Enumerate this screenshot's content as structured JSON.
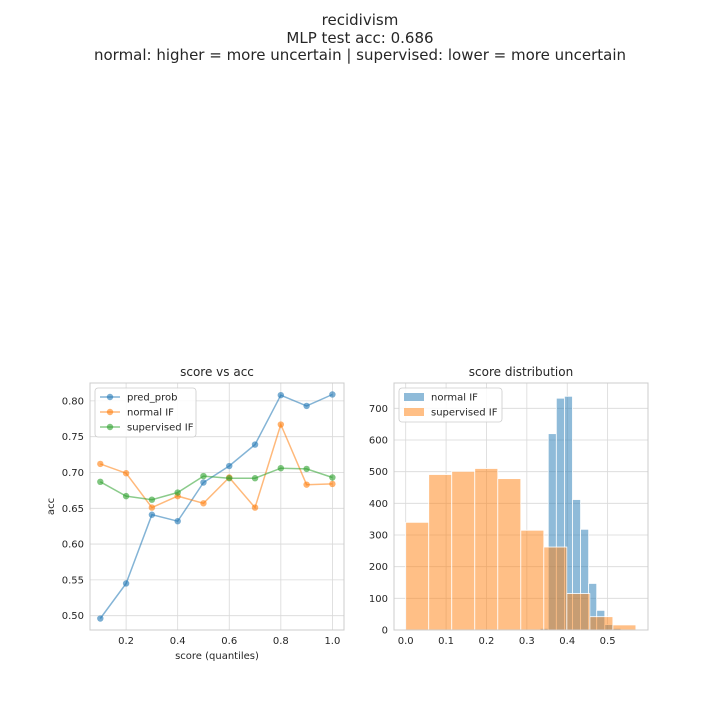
{
  "figure": {
    "title_lines": [
      "recidivism",
      "MLP test acc: 0.686",
      "normal: higher = more uncertain | supervised: lower = more uncertain"
    ]
  },
  "colors": {
    "blue": "#1f77b4",
    "orange": "#ff7f0e",
    "green": "#2ca02c",
    "grid": "#d9d9d9",
    "text": "#262626"
  },
  "chart_data": [
    {
      "type": "line",
      "title": "score vs acc",
      "xlabel": "score (quantiles)",
      "ylabel": "acc",
      "x": [
        0.1,
        0.2,
        0.3,
        0.4,
        0.5,
        0.6,
        0.7,
        0.8,
        0.9,
        1.0
      ],
      "xlim": [
        0.06,
        1.045
      ],
      "ylim": [
        0.48,
        0.825
      ],
      "xticks": [
        0.2,
        0.4,
        0.6,
        0.8,
        1.0
      ],
      "xtick_labels": [
        "0.2",
        "0.4",
        "0.6",
        "0.8",
        "1.0"
      ],
      "yticks": [
        0.5,
        0.55,
        0.6,
        0.65,
        0.7,
        0.75,
        0.8
      ],
      "ytick_labels": [
        "0.50",
        "0.55",
        "0.60",
        "0.65",
        "0.70",
        "0.75",
        "0.80"
      ],
      "grid": true,
      "legend": "upper left",
      "series": [
        {
          "name": "pred_prob",
          "color": "#1f77b4",
          "values": [
            0.496,
            0.545,
            0.641,
            0.632,
            0.686,
            0.709,
            0.739,
            0.808,
            0.793,
            0.809
          ]
        },
        {
          "name": "normal IF",
          "color": "#ff7f0e",
          "values": [
            0.712,
            0.699,
            0.651,
            0.667,
            0.657,
            0.693,
            0.651,
            0.767,
            0.683,
            0.684
          ]
        },
        {
          "name": "supervised IF",
          "color": "#2ca02c",
          "values": [
            0.687,
            0.667,
            0.662,
            0.672,
            0.695,
            0.692,
            0.692,
            0.706,
            0.705,
            0.693
          ]
        }
      ]
    },
    {
      "type": "bar",
      "subtype": "histogram",
      "title": "score distribution",
      "xlim": [
        -0.029,
        0.6
      ],
      "ylim": [
        0,
        780
      ],
      "xticks": [
        0.0,
        0.1,
        0.2,
        0.3,
        0.4,
        0.5
      ],
      "xtick_labels": [
        "0.0",
        "0.1",
        "0.2",
        "0.3",
        "0.4",
        "0.5"
      ],
      "yticks": [
        0,
        100,
        200,
        300,
        400,
        500,
        600,
        700
      ],
      "ytick_labels": [
        "0",
        "100",
        "200",
        "300",
        "400",
        "500",
        "600",
        "700"
      ],
      "grid": true,
      "legend": "upper left",
      "series": [
        {
          "name": "normal IF",
          "color": "#1f77b4",
          "bin_edges": [
            0.333,
            0.353,
            0.373,
            0.393,
            0.413,
            0.433,
            0.453,
            0.473,
            0.493,
            0.513,
            0.533
          ],
          "counts": [
            5,
            620,
            732,
            738,
            412,
            318,
            147,
            62,
            17,
            5
          ]
        },
        {
          "name": "supervised IF",
          "color": "#ff7f0e",
          "bin_edges": [
            0.0,
            0.057,
            0.114,
            0.171,
            0.228,
            0.285,
            0.342,
            0.399,
            0.456,
            0.513,
            0.57
          ],
          "counts": [
            340,
            491,
            501,
            510,
            478,
            315,
            262,
            115,
            42,
            16
          ]
        }
      ]
    }
  ]
}
